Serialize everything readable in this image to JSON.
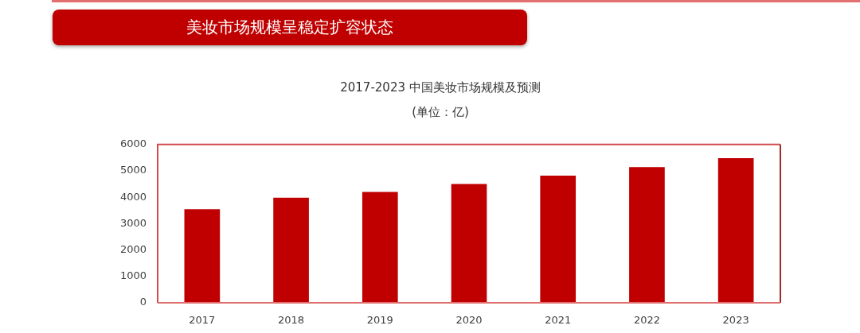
{
  "chart_data": {
    "type": "bar",
    "title": "2017-2023 中国美妆市场规模及预测",
    "subtitle": "(单位：亿)",
    "annotations": [
      "美妆市场规模呈稳定扩容状态"
    ],
    "categories": [
      "2017",
      "2018",
      "2019",
      "2020",
      "2021",
      "2022",
      "2023"
    ],
    "values": [
      3550,
      3980,
      4200,
      4500,
      4820,
      5140,
      5480
    ],
    "color": "#c00000",
    "ylim": [
      0,
      6000
    ],
    "yticks": [
      0,
      1000,
      2000,
      3000,
      4000,
      5000,
      6000
    ]
  }
}
